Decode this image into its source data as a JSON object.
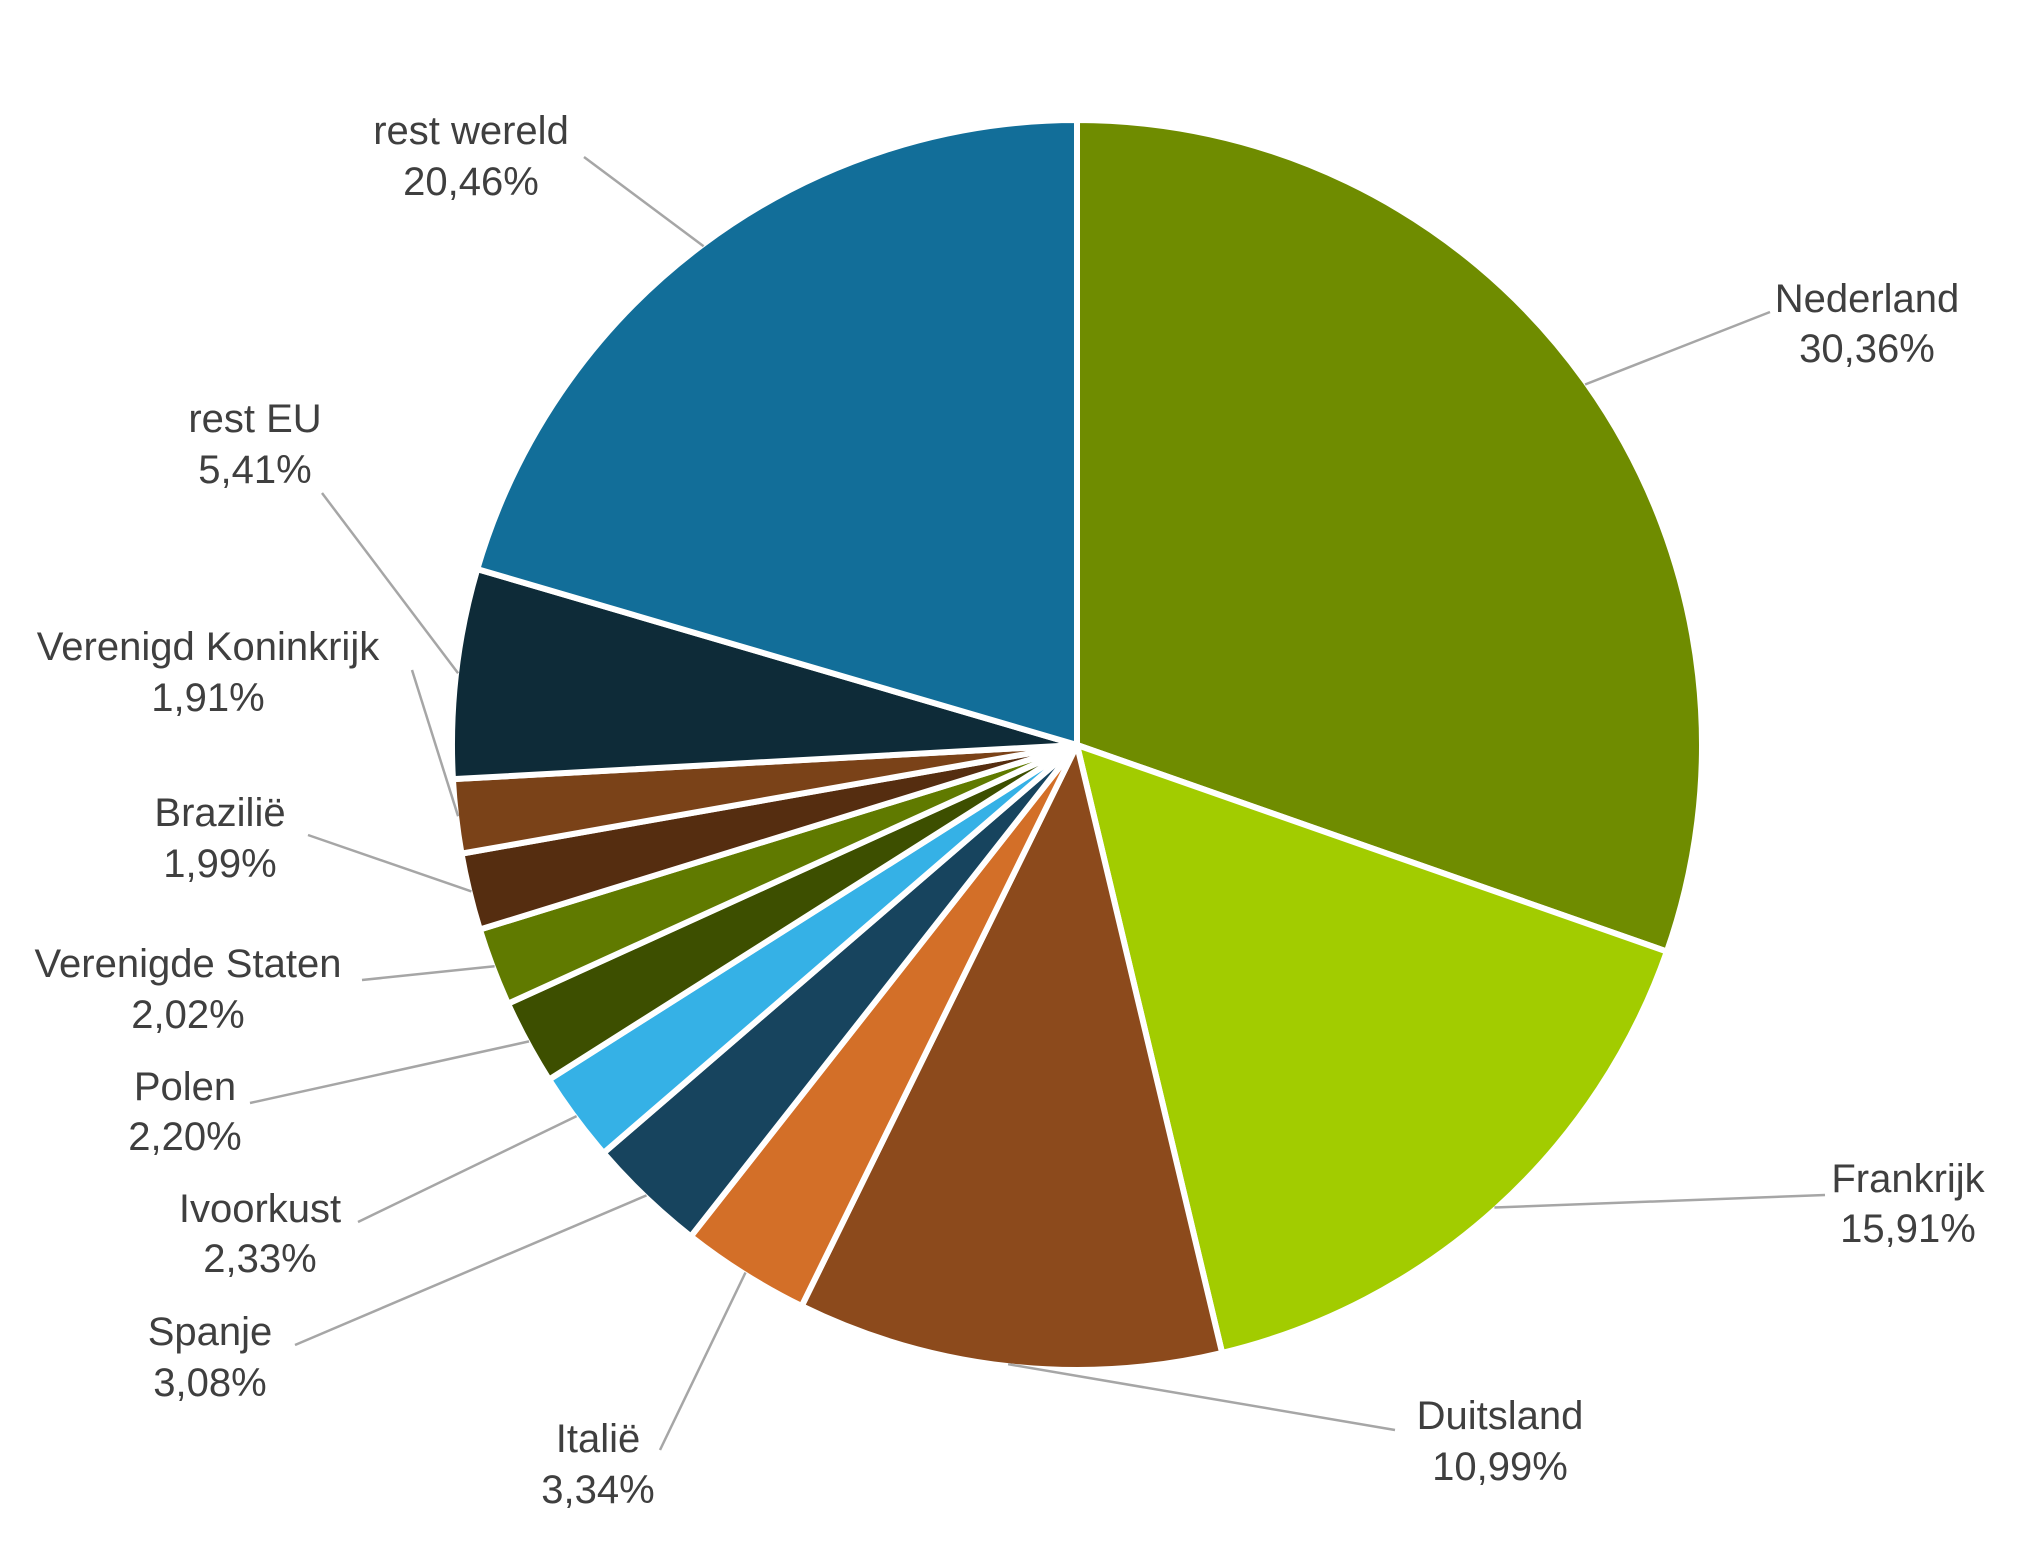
{
  "chart_data": {
    "type": "pie",
    "title": "",
    "start_angle_deg": 0,
    "direction": "clockwise",
    "slices": [
      {
        "label": "Nederland",
        "value": 30.36,
        "value_label": "30,36%",
        "color": "#6f8c00"
      },
      {
        "label": "Frankrijk",
        "value": 15.91,
        "value_label": "15,91%",
        "color": "#a2cc00"
      },
      {
        "label": "Duitsland",
        "value": 10.99,
        "value_label": "10,99%",
        "color": "#8c4a1c"
      },
      {
        "label": "Italië",
        "value": 3.34,
        "value_label": "3,34%",
        "color": "#d36f28"
      },
      {
        "label": "Spanje",
        "value": 3.08,
        "value_label": "3,08%",
        "color": "#17445e"
      },
      {
        "label": "Ivoorkust",
        "value": 2.33,
        "value_label": "2,33%",
        "color": "#35b1e6"
      },
      {
        "label": "Polen",
        "value": 2.2,
        "value_label": "2,20%",
        "color": "#3d4f00"
      },
      {
        "label": "Verenigde Staten",
        "value": 2.02,
        "value_label": "2,02%",
        "color": "#607a00"
      },
      {
        "label": "Brazilië",
        "value": 1.99,
        "value_label": "1,99%",
        "color": "#552d10"
      },
      {
        "label": "Verenigd Koninkrijk",
        "value": 1.91,
        "value_label": "1,91%",
        "color": "#7a4218"
      },
      {
        "label": "rest EU",
        "value": 5.41,
        "value_label": "5,41%",
        "color": "#0e2b38"
      },
      {
        "label": "rest wereld",
        "value": 20.46,
        "value_label": "20,46%",
        "color": "#126e99"
      }
    ]
  },
  "colors": {
    "background": "#ffffff",
    "slice_border": "#ffffff",
    "leader_line": "#a6a6a6",
    "label_text": "#3f3f3f"
  }
}
